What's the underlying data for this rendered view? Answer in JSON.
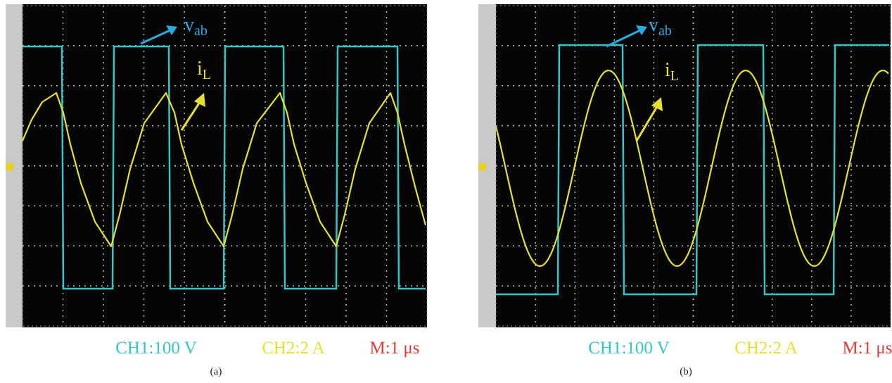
{
  "panels": [
    {
      "voltage_label": {
        "main": "v",
        "sub": "ab"
      },
      "current_label": {
        "main": "i",
        "sub": "L"
      },
      "settings": {
        "ch1": "CH1:100 V",
        "ch2": "CH2:2 A",
        "time": "M:1 μs"
      },
      "caption": "(a)"
    },
    {
      "voltage_label": {
        "main": "v",
        "sub": "ab"
      },
      "current_label": {
        "main": "i",
        "sub": "L"
      },
      "settings": {
        "ch1": "CH1:100 V",
        "ch2": "CH2:2 A",
        "time": "M:1 μs"
      },
      "caption": "(b)"
    }
  ]
}
